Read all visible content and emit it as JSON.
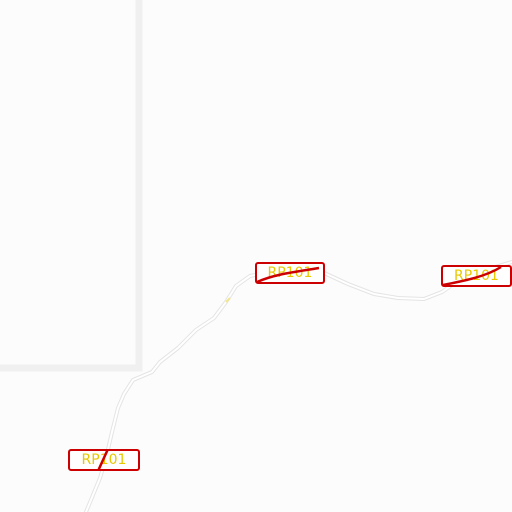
{
  "map": {
    "colors": {
      "background": "#fcfcfc",
      "boundary": "#f0f0f0",
      "road_casing": "#e4e4e4",
      "road_fill": "#ffffff",
      "label_border": "#cc0000",
      "label_text": "#e8c800"
    },
    "road_labels": [
      {
        "text": "RP101"
      },
      {
        "text": "RP101"
      },
      {
        "text": "RP101"
      }
    ]
  }
}
